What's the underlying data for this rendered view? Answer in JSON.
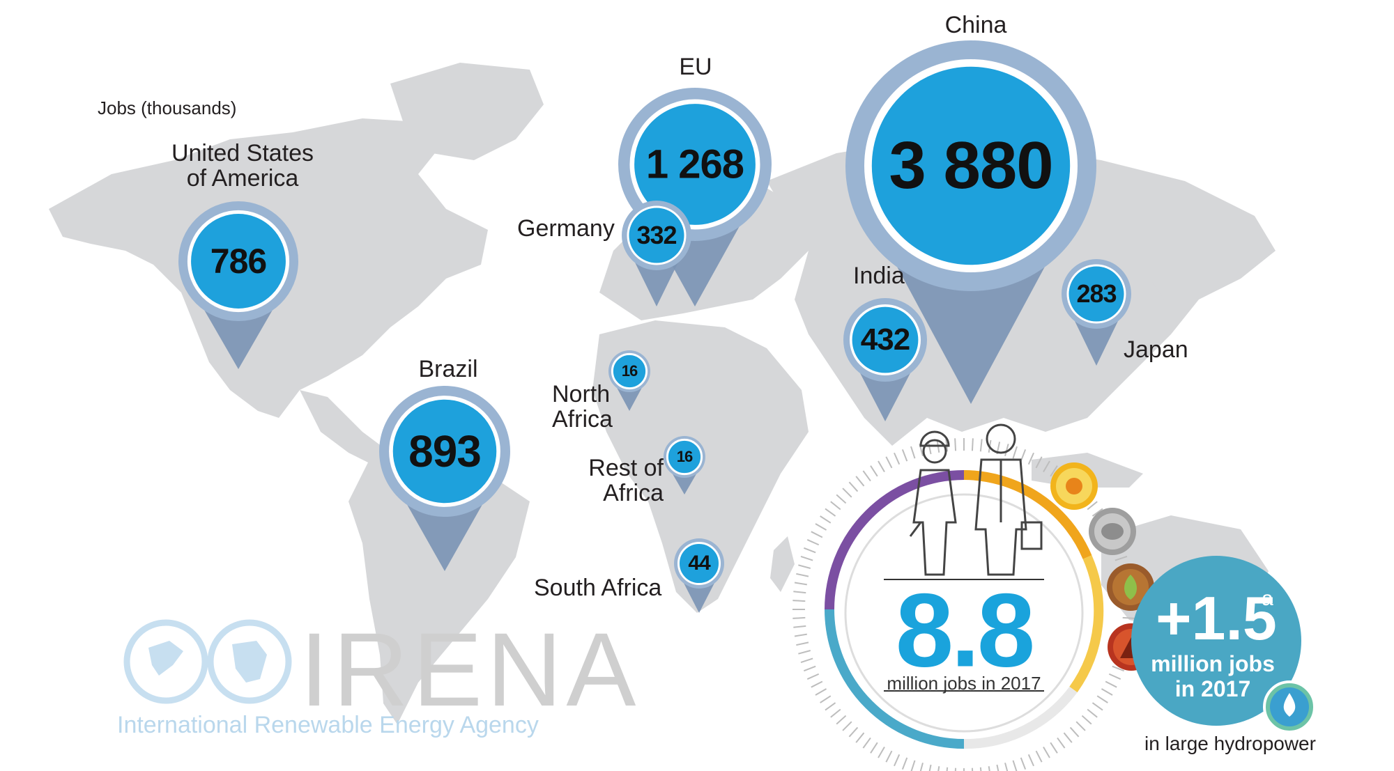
{
  "caption": "Jobs (thousands)",
  "regions": [
    {
      "id": "usa",
      "label_lines": [
        "United States",
        "of America"
      ],
      "value": "786"
    },
    {
      "id": "eu",
      "label_lines": [
        "EU"
      ],
      "value": "1 268"
    },
    {
      "id": "germany",
      "label_lines": [
        "Germany"
      ],
      "value": "332"
    },
    {
      "id": "china",
      "label_lines": [
        "China"
      ],
      "value": "3 880"
    },
    {
      "id": "india",
      "label_lines": [
        "India"
      ],
      "value": "432"
    },
    {
      "id": "japan",
      "label_lines": [
        "Japan"
      ],
      "value": "283"
    },
    {
      "id": "brazil",
      "label_lines": [
        "Brazil"
      ],
      "value": "893"
    },
    {
      "id": "north-africa",
      "label_lines": [
        "North",
        "Africa"
      ],
      "value": "16"
    },
    {
      "id": "rest-of-africa",
      "label_lines": [
        "Rest of",
        "Africa"
      ],
      "value": "16"
    },
    {
      "id": "south-africa",
      "label_lines": [
        "South Africa"
      ],
      "value": "44"
    }
  ],
  "total": {
    "value": "8.8",
    "sub": "million jobs in 2017"
  },
  "hydro": {
    "value": "+1.5",
    "superscript": "a",
    "sub_lines": [
      "million jobs",
      "in 2017"
    ],
    "foot": "in large hydropower"
  },
  "logo": {
    "name": "IRENA",
    "subtitle": "International Renewable Energy Agency"
  },
  "colors": {
    "map": "#d6d7d9",
    "pin_ring": "#9ab4d2",
    "pin_tail": "#7a93b4",
    "pin_fill": "#1ea1dc",
    "hydro_bubble": "#4aa7c4",
    "text": "#231f20"
  },
  "icons": [
    "worker-woman-icon",
    "worker-man-icon",
    "solar-icon",
    "biomass-icon",
    "bioenergy-leaf-icon",
    "geothermal-icon",
    "water-drop-icon",
    "globe-infinity-icon"
  ]
}
